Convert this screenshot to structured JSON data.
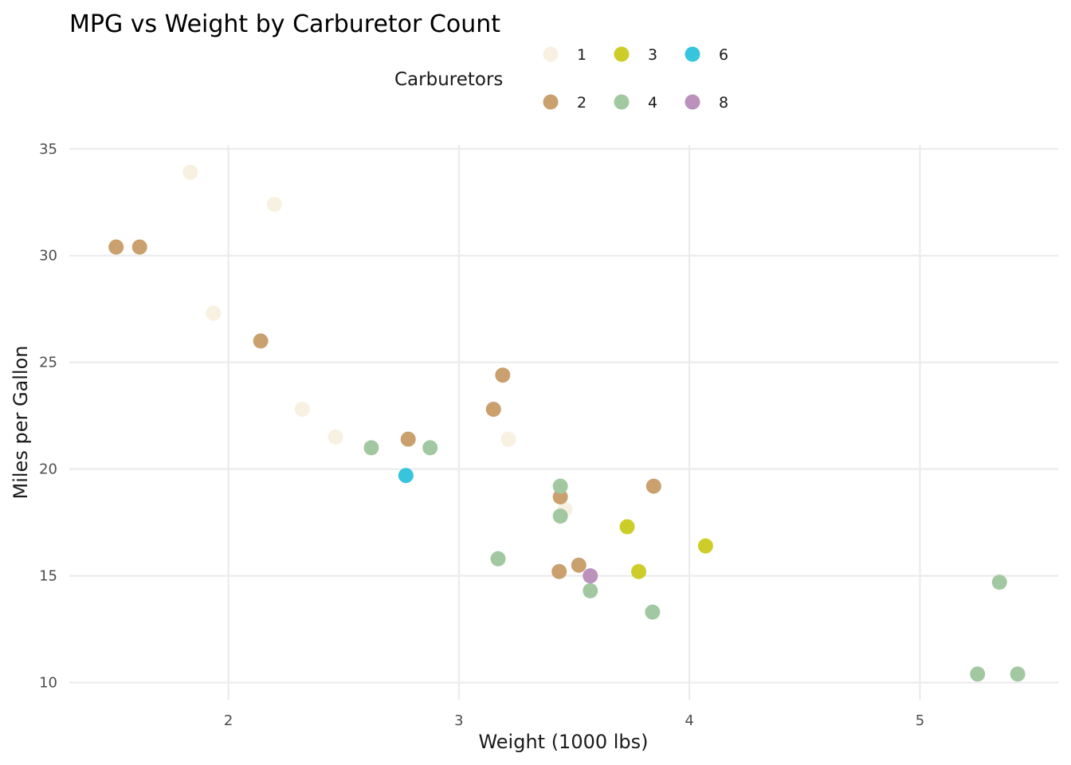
{
  "chart_data": {
    "type": "scatter",
    "title": "MPG vs Weight by Carburetor Count",
    "xlabel": "Weight (1000 lbs)",
    "ylabel": "Miles per Gallon",
    "xlim": [
      1.31,
      5.6
    ],
    "ylim": [
      9.2,
      36
    ],
    "xticks": [
      2,
      3,
      4,
      5
    ],
    "yticks": [
      10,
      15,
      20,
      25,
      30,
      35
    ],
    "grid": true,
    "legend": {
      "title": "Carburetors",
      "position": "top",
      "entries": [
        {
          "label": "1",
          "color": "#F8F1E1"
        },
        {
          "label": "2",
          "color": "#C9A06E"
        },
        {
          "label": "3",
          "color": "#CDCD2A"
        },
        {
          "label": "4",
          "color": "#A2C8A2"
        },
        {
          "label": "6",
          "color": "#36C5DD"
        },
        {
          "label": "8",
          "color": "#BB92BB"
        }
      ]
    },
    "series": [
      {
        "name": "1",
        "color": "#F8F1E1",
        "points": [
          [
            3.215,
            21.4
          ],
          [
            3.46,
            18.1
          ],
          [
            2.32,
            22.8
          ],
          [
            1.835,
            33.9
          ],
          [
            2.2,
            32.4
          ],
          [
            1.935,
            27.3
          ],
          [
            2.465,
            21.5
          ]
        ]
      },
      {
        "name": "2",
        "color": "#C9A06E",
        "points": [
          [
            3.44,
            18.7
          ],
          [
            3.19,
            24.4
          ],
          [
            3.15,
            22.8
          ],
          [
            3.52,
            15.5
          ],
          [
            3.435,
            15.2
          ],
          [
            3.845,
            19.2
          ],
          [
            2.14,
            26.0
          ],
          [
            1.513,
            30.4
          ],
          [
            1.615,
            30.4
          ],
          [
            2.78,
            21.4
          ]
        ]
      },
      {
        "name": "3",
        "color": "#CDCD2A",
        "points": [
          [
            4.07,
            16.4
          ],
          [
            3.73,
            17.3
          ],
          [
            3.78,
            15.2
          ]
        ]
      },
      {
        "name": "4",
        "color": "#A2C8A2",
        "points": [
          [
            2.62,
            21.0
          ],
          [
            2.875,
            21.0
          ],
          [
            3.57,
            14.3
          ],
          [
            3.44,
            19.2
          ],
          [
            3.44,
            17.8
          ],
          [
            5.25,
            10.4
          ],
          [
            5.424,
            10.4
          ],
          [
            5.345,
            14.7
          ],
          [
            3.84,
            13.3
          ],
          [
            3.17,
            15.8
          ]
        ]
      },
      {
        "name": "6",
        "color": "#36C5DD",
        "points": [
          [
            2.77,
            19.7
          ]
        ]
      },
      {
        "name": "8",
        "color": "#BB92BB",
        "points": [
          [
            3.57,
            15.0
          ]
        ]
      }
    ]
  }
}
